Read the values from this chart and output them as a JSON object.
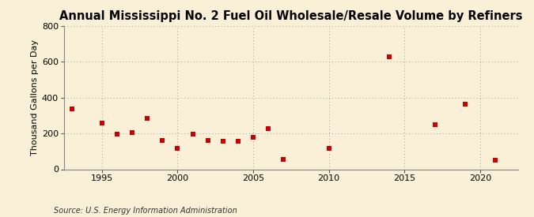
{
  "years": [
    1993,
    1995,
    1996,
    1997,
    1998,
    1999,
    2000,
    2001,
    2002,
    2003,
    2004,
    2005,
    2006,
    2007,
    2010,
    2014,
    2017,
    2019,
    2021
  ],
  "values": [
    335,
    260,
    195,
    205,
    285,
    160,
    115,
    195,
    160,
    155,
    155,
    180,
    225,
    55,
    115,
    630,
    250,
    365,
    50
  ],
  "title": "Annual Mississippi No. 2 Fuel Oil Wholesale/Resale Volume by Refiners",
  "ylabel": "Thousand Gallons per Day",
  "source": "Source: U.S. Energy Information Administration",
  "marker_color": "#cc0000",
  "background_color": "#faefd7",
  "grid_color": "#a0a0a0",
  "xlim": [
    1992.5,
    2022.5
  ],
  "ylim": [
    0,
    800
  ],
  "yticks": [
    0,
    200,
    400,
    600,
    800
  ],
  "xticks": [
    1995,
    2000,
    2005,
    2010,
    2015,
    2020
  ],
  "title_fontsize": 10.5,
  "label_fontsize": 8,
  "tick_fontsize": 8,
  "source_fontsize": 7,
  "marker_size": 4.5
}
